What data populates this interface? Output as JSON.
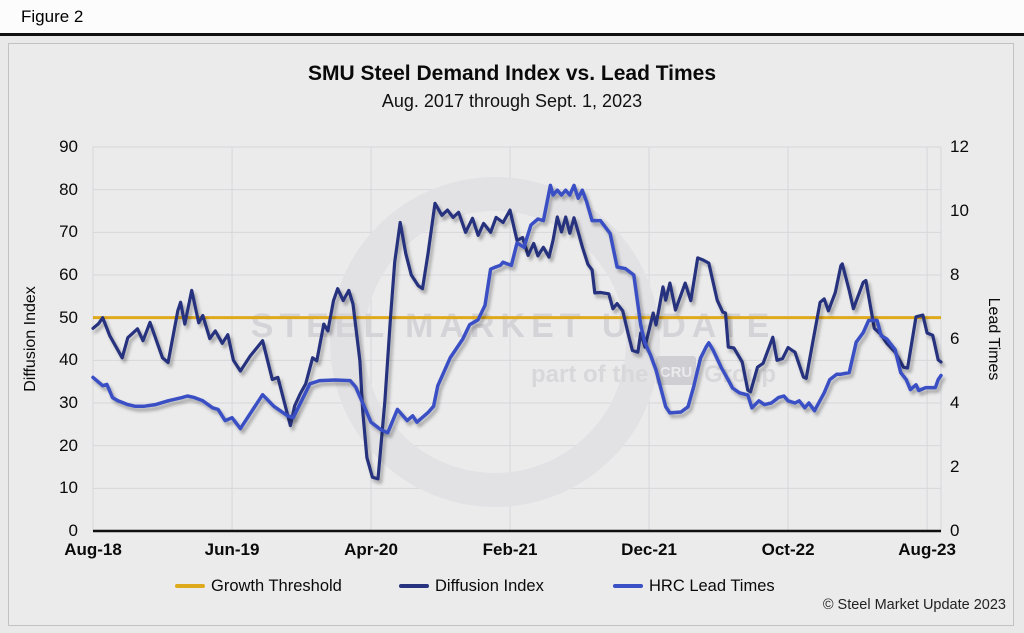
{
  "figure_label": "Figure 2",
  "title": "SMU Steel Demand Index vs. Lead Times",
  "subtitle": "Aug. 2017 through Sept. 1, 2023",
  "copyright": "© Steel Market Update 2023",
  "watermark": {
    "line1": "STEEL MARKET UPDATE",
    "line2_prefix": "part of the",
    "line2_logo": "CRU",
    "line2_suffix": "Group"
  },
  "colors": {
    "growth_threshold": "#dfa91c",
    "diffusion_index": "#27337e",
    "hrc_lead_times": "#3a50c4",
    "grid": "#d7d7da",
    "axis_line": "#101010"
  },
  "left_axis": {
    "label": "Diffusion Index",
    "min": 0,
    "max": 90,
    "step": 10
  },
  "right_axis": {
    "label": "Lead Times",
    "min": 0,
    "max": 12,
    "step": 2
  },
  "x_axis": {
    "tick_labels": [
      "Aug-18",
      "Jun-19",
      "Apr-20",
      "Feb-21",
      "Dec-21",
      "Oct-22",
      "Aug-23"
    ],
    "months_per_tick": 10,
    "total_months": 61
  },
  "legend": [
    {
      "label": "Growth Threshold",
      "color": "#dfa91c"
    },
    {
      "label": "Diffusion Index",
      "color": "#27337e"
    },
    {
      "label": "HRC Lead Times",
      "color": "#3a50c4"
    }
  ],
  "chart_data": {
    "type": "line",
    "title": "SMU Steel Demand Index vs. Lead Times",
    "x_unit": "months since Aug-2018",
    "x_range": [
      0,
      61
    ],
    "grid": true,
    "legend_position": "bottom",
    "series": [
      {
        "name": "Growth Threshold",
        "axis": "left",
        "color": "#dfa91c",
        "constant": 50
      },
      {
        "name": "Diffusion Index",
        "axis": "left",
        "color": "#27337e",
        "ylim": [
          0,
          90
        ],
        "points": [
          [
            0,
            47.5
          ],
          [
            0.4,
            48.6
          ],
          [
            0.7,
            50
          ],
          [
            1.2,
            45.8
          ],
          [
            2.1,
            40.6
          ],
          [
            2.5,
            45.3
          ],
          [
            3.2,
            47.4
          ],
          [
            3.6,
            44.6
          ],
          [
            4.1,
            48.9
          ],
          [
            5,
            40.6
          ],
          [
            5.4,
            39.5
          ],
          [
            6.1,
            51.6
          ],
          [
            6.3,
            53.6
          ],
          [
            6.6,
            48.5
          ],
          [
            7.1,
            56.4
          ],
          [
            7.6,
            48.8
          ],
          [
            7.9,
            50.5
          ],
          [
            8.4,
            45.1
          ],
          [
            8.8,
            46.9
          ],
          [
            9.3,
            44
          ],
          [
            9.7,
            46
          ],
          [
            10.1,
            40
          ],
          [
            10.6,
            37.5
          ],
          [
            11.3,
            41
          ],
          [
            12.2,
            44.6
          ],
          [
            12.9,
            35.5
          ],
          [
            13.3,
            36
          ],
          [
            14.2,
            24.7
          ],
          [
            14.5,
            29.3
          ],
          [
            14.9,
            32.1
          ],
          [
            15.3,
            34.5
          ],
          [
            15.8,
            40.6
          ],
          [
            16.1,
            39.9
          ],
          [
            16.6,
            48.5
          ],
          [
            16.9,
            46.9
          ],
          [
            17.3,
            54
          ],
          [
            17.6,
            56.8
          ],
          [
            18,
            54
          ],
          [
            18.4,
            56.4
          ],
          [
            18.7,
            53.2
          ],
          [
            19.2,
            39.9
          ],
          [
            19.4,
            28.2
          ],
          [
            19.7,
            17.2
          ],
          [
            20.1,
            12.6
          ],
          [
            20.5,
            12.2
          ],
          [
            21,
            30.5
          ],
          [
            21.4,
            50
          ],
          [
            21.7,
            63
          ],
          [
            22.1,
            72.3
          ],
          [
            22.5,
            65
          ],
          [
            22.9,
            60
          ],
          [
            23.4,
            57.5
          ],
          [
            23.7,
            56.8
          ],
          [
            24.1,
            65
          ],
          [
            24.6,
            76.8
          ],
          [
            25.1,
            74
          ],
          [
            25.5,
            75.2
          ],
          [
            25.9,
            73.5
          ],
          [
            26.3,
            74.7
          ],
          [
            26.8,
            70
          ],
          [
            27.3,
            73.3
          ],
          [
            27.7,
            69.3
          ],
          [
            28.1,
            72.1
          ],
          [
            28.6,
            70
          ],
          [
            29,
            73.5
          ],
          [
            29.5,
            72.3
          ],
          [
            30,
            75.2
          ],
          [
            30.5,
            68.1
          ],
          [
            30.9,
            68.8
          ],
          [
            31.3,
            64.6
          ],
          [
            31.7,
            67.4
          ],
          [
            32,
            64.5
          ],
          [
            32.4,
            66.5
          ],
          [
            32.8,
            64.2
          ],
          [
            33.1,
            68.2
          ],
          [
            33.4,
            73.6
          ],
          [
            33.7,
            70.1
          ],
          [
            34,
            73.6
          ],
          [
            34.3,
            69.8
          ],
          [
            34.6,
            73.4
          ],
          [
            34.9,
            70.1
          ],
          [
            35.2,
            66.6
          ],
          [
            35.6,
            62.5
          ],
          [
            35.9,
            61.2
          ],
          [
            36.1,
            55.8
          ],
          [
            36.5,
            55.9
          ],
          [
            37.1,
            55.6
          ],
          [
            37.4,
            52.1
          ],
          [
            37.7,
            53.3
          ],
          [
            38.1,
            51.6
          ],
          [
            38.5,
            46.2
          ],
          [
            38.8,
            42.3
          ],
          [
            39.2,
            41.9
          ],
          [
            39.4,
            46.4
          ],
          [
            39.7,
            43.1
          ],
          [
            40.3,
            51.1
          ],
          [
            40.5,
            48.3
          ],
          [
            41,
            57.2
          ],
          [
            41.2,
            54.1
          ],
          [
            41.5,
            58.1
          ],
          [
            41.9,
            51.8
          ],
          [
            42.6,
            58.1
          ],
          [
            43,
            54
          ],
          [
            43.5,
            64
          ],
          [
            43.9,
            63.5
          ],
          [
            44.3,
            62.8
          ],
          [
            44.9,
            54.1
          ],
          [
            45.3,
            51.3
          ],
          [
            45.5,
            51.1
          ],
          [
            45.7,
            43.1
          ],
          [
            46.1,
            42.9
          ],
          [
            46.7,
            39.6
          ],
          [
            47.1,
            33
          ],
          [
            47.3,
            32.6
          ],
          [
            47.8,
            38.4
          ],
          [
            48.2,
            39.3
          ],
          [
            48.9,
            45.4
          ],
          [
            49.2,
            40
          ],
          [
            49.6,
            40.4
          ],
          [
            50,
            43
          ],
          [
            50.3,
            42.3
          ],
          [
            50.5,
            41.9
          ],
          [
            51.1,
            36.1
          ],
          [
            51.3,
            35.8
          ],
          [
            51.8,
            44.7
          ],
          [
            52.3,
            53.6
          ],
          [
            52.6,
            54.4
          ],
          [
            52.9,
            51.6
          ],
          [
            53.4,
            55.9
          ],
          [
            53.8,
            62.2
          ],
          [
            53.9,
            62.6
          ],
          [
            54.4,
            56.4
          ],
          [
            54.7,
            52.1
          ],
          [
            55.4,
            58.3
          ],
          [
            55.6,
            58.7
          ],
          [
            56.2,
            47.5
          ],
          [
            56.7,
            46
          ],
          [
            57.1,
            44
          ],
          [
            57.7,
            41.9
          ],
          [
            58.3,
            38.4
          ],
          [
            58.6,
            38.2
          ],
          [
            59.2,
            50.2
          ],
          [
            59.7,
            50.6
          ],
          [
            60,
            46.4
          ],
          [
            60.4,
            45.9
          ],
          [
            60.8,
            40.1
          ],
          [
            61,
            39.6
          ]
        ]
      },
      {
        "name": "HRC Lead Times",
        "axis": "right",
        "color": "#3a50c4",
        "ylim": [
          0,
          12
        ],
        "points": [
          [
            0,
            4.8
          ],
          [
            0.7,
            4.54
          ],
          [
            1,
            4.58
          ],
          [
            1.4,
            4.17
          ],
          [
            1.8,
            4.07
          ],
          [
            2.5,
            3.95
          ],
          [
            3,
            3.9
          ],
          [
            3.7,
            3.9
          ],
          [
            4.5,
            3.95
          ],
          [
            5.4,
            4.07
          ],
          [
            6.4,
            4.17
          ],
          [
            6.8,
            4.22
          ],
          [
            7.3,
            4.17
          ],
          [
            7.9,
            4.07
          ],
          [
            8.6,
            3.85
          ],
          [
            9,
            3.8
          ],
          [
            9.5,
            3.45
          ],
          [
            10,
            3.54
          ],
          [
            10.6,
            3.2
          ],
          [
            12.2,
            4.26
          ],
          [
            13,
            3.9
          ],
          [
            14,
            3.6
          ],
          [
            14.4,
            3.54
          ],
          [
            15.6,
            4.6
          ],
          [
            16.3,
            4.7
          ],
          [
            17.4,
            4.72
          ],
          [
            18.5,
            4.7
          ],
          [
            18.9,
            4.5
          ],
          [
            19.4,
            4
          ],
          [
            20,
            3.4
          ],
          [
            20.7,
            3.17
          ],
          [
            21.2,
            3.07
          ],
          [
            21.9,
            3.8
          ],
          [
            22.6,
            3.45
          ],
          [
            23,
            3.6
          ],
          [
            23.3,
            3.4
          ],
          [
            24.1,
            3.7
          ],
          [
            24.5,
            3.9
          ],
          [
            24.8,
            4.54
          ],
          [
            25.7,
            5.42
          ],
          [
            26.6,
            6
          ],
          [
            27.1,
            6.45
          ],
          [
            27.7,
            6.6
          ],
          [
            28.2,
            7.05
          ],
          [
            28.6,
            8.18
          ],
          [
            28.9,
            8.24
          ],
          [
            29.3,
            8.3
          ],
          [
            29.5,
            8.4
          ],
          [
            30.1,
            8.3
          ],
          [
            30.5,
            9
          ],
          [
            31,
            8.87
          ],
          [
            31.5,
            9.56
          ],
          [
            32,
            9.75
          ],
          [
            32.4,
            9.7
          ],
          [
            32.9,
            10.8
          ],
          [
            33.1,
            10.5
          ],
          [
            33.4,
            10.65
          ],
          [
            33.7,
            10.5
          ],
          [
            34,
            10.65
          ],
          [
            34.3,
            10.5
          ],
          [
            34.6,
            10.8
          ],
          [
            34.9,
            10.4
          ],
          [
            35.2,
            10.65
          ],
          [
            35.5,
            10.3
          ],
          [
            35.9,
            9.7
          ],
          [
            36.5,
            9.7
          ],
          [
            37.2,
            9.3
          ],
          [
            37.7,
            8.25
          ],
          [
            38.3,
            8.2
          ],
          [
            38.9,
            8
          ],
          [
            39.4,
            6.44
          ],
          [
            39.7,
            5.88
          ],
          [
            40.1,
            5.5
          ],
          [
            40.5,
            5.03
          ],
          [
            41.2,
            3.88
          ],
          [
            41.5,
            3.69
          ],
          [
            42.3,
            3.72
          ],
          [
            42.8,
            3.88
          ],
          [
            43.2,
            4.5
          ],
          [
            43.7,
            5.4
          ],
          [
            44.1,
            5.75
          ],
          [
            44.3,
            5.88
          ],
          [
            44.6,
            5.66
          ],
          [
            45.2,
            5.1
          ],
          [
            45.7,
            4.72
          ],
          [
            46,
            4.47
          ],
          [
            46.5,
            4.32
          ],
          [
            47.1,
            4.25
          ],
          [
            47.4,
            3.85
          ],
          [
            47.9,
            4.07
          ],
          [
            48.3,
            3.95
          ],
          [
            48.8,
            4
          ],
          [
            49.3,
            4.17
          ],
          [
            49.7,
            4.22
          ],
          [
            50,
            4.07
          ],
          [
            50.5,
            4
          ],
          [
            50.8,
            4.07
          ],
          [
            51.2,
            3.85
          ],
          [
            51.5,
            4
          ],
          [
            51.9,
            3.76
          ],
          [
            52.6,
            4.32
          ],
          [
            53,
            4.73
          ],
          [
            53.5,
            4.9
          ],
          [
            53.8,
            4.9
          ],
          [
            54.4,
            4.95
          ],
          [
            54.9,
            5.9
          ],
          [
            55.4,
            6.2
          ],
          [
            55.8,
            6.58
          ],
          [
            56.4,
            6.58
          ],
          [
            56.7,
            6.1
          ],
          [
            57.1,
            6
          ],
          [
            57.4,
            5.83
          ],
          [
            57.7,
            5.67
          ],
          [
            58.1,
            4.95
          ],
          [
            58.5,
            4.73
          ],
          [
            58.8,
            4.42
          ],
          [
            59.2,
            4.57
          ],
          [
            59.4,
            4.39
          ],
          [
            59.9,
            4.48
          ],
          [
            60.6,
            4.48
          ],
          [
            60.8,
            4.73
          ],
          [
            61,
            4.86
          ]
        ]
      }
    ]
  }
}
